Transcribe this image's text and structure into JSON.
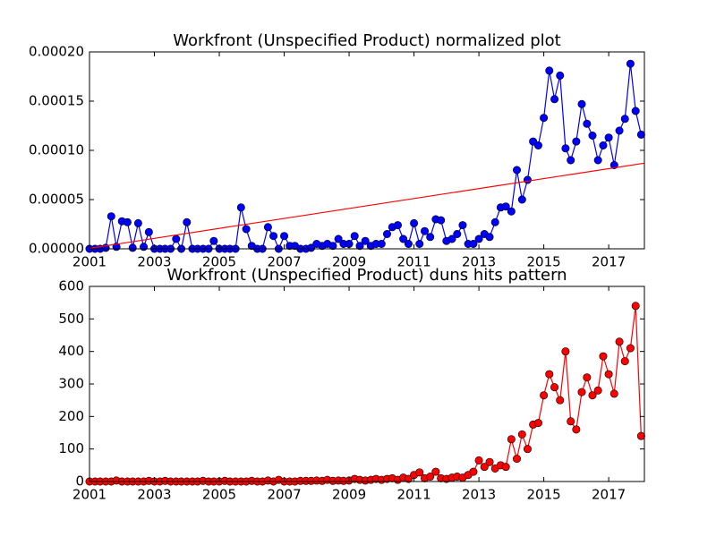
{
  "chart_data": [
    {
      "type": "line",
      "title": "Workfront (Unspecified Product) normalized plot",
      "x": [
        2001,
        2001.17,
        2001.33,
        2001.5,
        2001.67,
        2001.83,
        2002,
        2002.17,
        2002.33,
        2002.5,
        2002.67,
        2002.83,
        2003,
        2003.17,
        2003.33,
        2003.5,
        2003.67,
        2003.83,
        2004,
        2004.17,
        2004.33,
        2004.5,
        2004.67,
        2004.83,
        2005,
        2005.17,
        2005.33,
        2005.5,
        2005.67,
        2005.83,
        2006,
        2006.17,
        2006.33,
        2006.5,
        2006.67,
        2006.83,
        2007,
        2007.17,
        2007.33,
        2007.5,
        2007.67,
        2007.83,
        2008,
        2008.17,
        2008.33,
        2008.5,
        2008.67,
        2008.83,
        2009,
        2009.17,
        2009.33,
        2009.5,
        2009.67,
        2009.83,
        2010,
        2010.17,
        2010.33,
        2010.5,
        2010.67,
        2010.83,
        2011,
        2011.17,
        2011.33,
        2011.5,
        2011.67,
        2011.83,
        2012,
        2012.17,
        2012.33,
        2012.5,
        2012.67,
        2012.83,
        2013,
        2013.17,
        2013.33,
        2013.5,
        2013.67,
        2013.83,
        2014,
        2014.17,
        2014.33,
        2014.5,
        2014.67,
        2014.83,
        2015,
        2015.17,
        2015.33,
        2015.5,
        2015.67,
        2015.83,
        2016,
        2016.17,
        2016.33,
        2016.5,
        2016.67,
        2016.83,
        2017,
        2017.17,
        2017.33,
        2017.5,
        2017.67,
        2017.83,
        2018
      ],
      "series": [
        {
          "color": "#0000ff",
          "marker": true,
          "values": [
            0,
            0,
            0,
            1e-06,
            3.3e-05,
            2e-06,
            2.8e-05,
            2.7e-05,
            1e-06,
            2.6e-05,
            2e-06,
            1.7e-05,
            0,
            0,
            0,
            0,
            1e-05,
            0,
            2.7e-05,
            0,
            0,
            0,
            0,
            8e-06,
            0,
            0,
            0,
            0,
            4.2e-05,
            2e-05,
            3e-06,
            0,
            0,
            2.2e-05,
            1.3e-05,
            0,
            1.3e-05,
            3e-06,
            3e-06,
            0,
            0,
            1e-06,
            5e-06,
            3e-06,
            5e-06,
            3e-06,
            1e-05,
            5e-06,
            5e-06,
            1.3e-05,
            3e-06,
            8e-06,
            3e-06,
            5e-06,
            5e-06,
            1.5e-05,
            2.2e-05,
            2.4e-05,
            1e-05,
            5e-06,
            2.6e-05,
            5e-06,
            1.8e-05,
            1.2e-05,
            3e-05,
            2.9e-05,
            8e-06,
            1e-05,
            1.5e-05,
            2.4e-05,
            5e-06,
            5e-06,
            1e-05,
            1.5e-05,
            1.2e-05,
            2.7e-05,
            4.2e-05,
            4.3e-05,
            3.8e-05,
            8e-05,
            5e-05,
            7e-05,
            0.000109,
            0.000105,
            0.000133,
            0.000181,
            0.000152,
            0.000176,
            0.000102,
            9e-05,
            0.000109,
            0.000147,
            0.000127,
            0.000115,
            9e-05,
            0.000105,
            0.000113,
            8.5e-05,
            0.00012,
            0.000132,
            0.000188,
            0.00014,
            0.000116
          ]
        },
        {
          "color": "#ff0000",
          "marker": false,
          "x": [
            2001,
            2018.1
          ],
          "values": [
            5e-07,
            8.7e-05
          ]
        }
      ],
      "xlim": [
        2001,
        2018.1
      ],
      "xticks": [
        2001,
        2003,
        2005,
        2007,
        2009,
        2011,
        2013,
        2015,
        2017
      ],
      "ylim": [
        0,
        0.0002
      ],
      "yticks": [
        {
          "value": 0,
          "label": "0.00000"
        },
        {
          "value": 5e-05,
          "label": "0.00005"
        },
        {
          "value": 0.0001,
          "label": "0.00010"
        },
        {
          "value": 0.00015,
          "label": "0.00015"
        },
        {
          "value": 0.0002,
          "label": "0.00020"
        }
      ]
    },
    {
      "type": "line",
      "title": "Workfront (Unspecified Product) duns hits pattern",
      "x": [
        2001,
        2001.17,
        2001.33,
        2001.5,
        2001.67,
        2001.83,
        2002,
        2002.17,
        2002.33,
        2002.5,
        2002.67,
        2002.83,
        2003,
        2003.17,
        2003.33,
        2003.5,
        2003.67,
        2003.83,
        2004,
        2004.17,
        2004.33,
        2004.5,
        2004.67,
        2004.83,
        2005,
        2005.17,
        2005.33,
        2005.5,
        2005.67,
        2005.83,
        2006,
        2006.17,
        2006.33,
        2006.5,
        2006.67,
        2006.83,
        2007,
        2007.17,
        2007.33,
        2007.5,
        2007.67,
        2007.83,
        2008,
        2008.17,
        2008.33,
        2008.5,
        2008.67,
        2008.83,
        2009,
        2009.17,
        2009.33,
        2009.5,
        2009.67,
        2009.83,
        2010,
        2010.17,
        2010.33,
        2010.5,
        2010.67,
        2010.83,
        2011,
        2011.17,
        2011.33,
        2011.5,
        2011.67,
        2011.83,
        2012,
        2012.17,
        2012.33,
        2012.5,
        2012.67,
        2012.83,
        2013,
        2013.17,
        2013.33,
        2013.5,
        2013.67,
        2013.83,
        2014,
        2014.17,
        2014.33,
        2014.5,
        2014.67,
        2014.83,
        2015,
        2015.17,
        2015.33,
        2015.5,
        2015.67,
        2015.83,
        2016,
        2016.17,
        2016.33,
        2016.5,
        2016.67,
        2016.83,
        2017,
        2017.17,
        2017.33,
        2017.5,
        2017.67,
        2017.83,
        2018
      ],
      "series": [
        {
          "color": "#ff0000",
          "marker": true,
          "values": [
            0,
            0,
            0,
            0,
            0,
            3,
            0,
            0,
            0,
            0,
            0,
            2,
            0,
            0,
            2,
            0,
            0,
            0,
            0,
            0,
            0,
            2,
            0,
            0,
            0,
            2,
            0,
            0,
            0,
            0,
            2,
            0,
            0,
            3,
            0,
            5,
            0,
            0,
            0,
            2,
            2,
            2,
            3,
            2,
            5,
            2,
            3,
            2,
            3,
            8,
            5,
            3,
            5,
            8,
            5,
            8,
            10,
            5,
            12,
            8,
            20,
            28,
            10,
            15,
            30,
            10,
            8,
            12,
            15,
            12,
            20,
            30,
            65,
            45,
            60,
            40,
            50,
            45,
            130,
            70,
            145,
            100,
            175,
            180,
            265,
            330,
            290,
            250,
            400,
            185,
            160,
            275,
            320,
            265,
            280,
            385,
            330,
            270,
            430,
            370,
            410,
            540,
            140
          ]
        }
      ],
      "xlim": [
        2001,
        2018.1
      ],
      "xticks": [
        2001,
        2003,
        2005,
        2007,
        2009,
        2011,
        2013,
        2015,
        2017
      ],
      "ylim": [
        0,
        600
      ],
      "yticks": [
        0,
        100,
        200,
        300,
        400,
        500,
        600
      ]
    }
  ]
}
